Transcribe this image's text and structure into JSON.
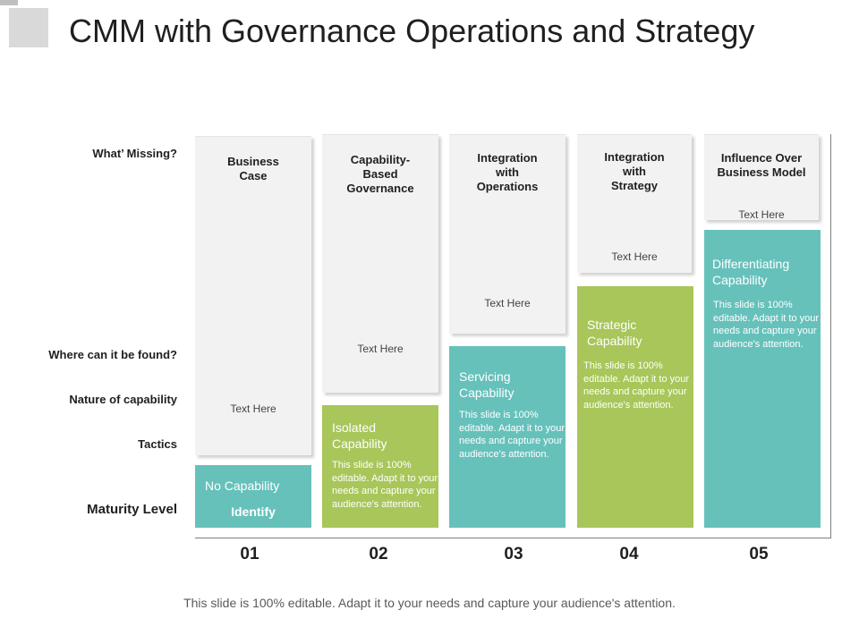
{
  "title": "CMM with Governance Operations and Strategy",
  "row_labels": {
    "missing": "What’ Missing?",
    "found": "Where can it be found?",
    "nature": "Nature of capability",
    "tactics": "Tactics",
    "maturity": "Maturity Level"
  },
  "columns": [
    {
      "number": "01",
      "heading": "Business\nCase",
      "text_here": "Text Here",
      "capability": "No Capability",
      "tactic": "Identify",
      "description": ""
    },
    {
      "number": "02",
      "heading": "Capability-\nBased\nGovernance",
      "text_here": "Text Here",
      "capability": "Isolated\nCapability",
      "tactic": "",
      "description": "This slide is 100% editable. Adapt it to your needs and capture your audience's attention."
    },
    {
      "number": "03",
      "heading": "Integration\nwith\nOperations",
      "text_here": "Text Here",
      "capability": "Servicing\nCapability",
      "tactic": "",
      "description": "This slide is 100% editable. Adapt it to your needs and capture your audience's attention."
    },
    {
      "number": "04",
      "heading": "Integration\nwith\nStrategy",
      "text_here": "Text Here",
      "capability": "Strategic\nCapability",
      "tactic": "",
      "description": "This slide is 100% editable. Adapt it to your needs and capture your audience's attention."
    },
    {
      "number": "05",
      "heading": "Influence Over\nBusiness Model",
      "text_here": "Text Here",
      "capability": "Differentiating\nCapability",
      "tactic": "",
      "description": "This slide is 100% editable. Adapt it to your needs and capture your audience's attention."
    }
  ],
  "footer": "This slide is 100% editable. Adapt it to your needs and capture your audience's attention.",
  "colors": {
    "teal": "#66c1bb",
    "green": "#a8c65a",
    "gray_card": "#f2f2f2"
  }
}
